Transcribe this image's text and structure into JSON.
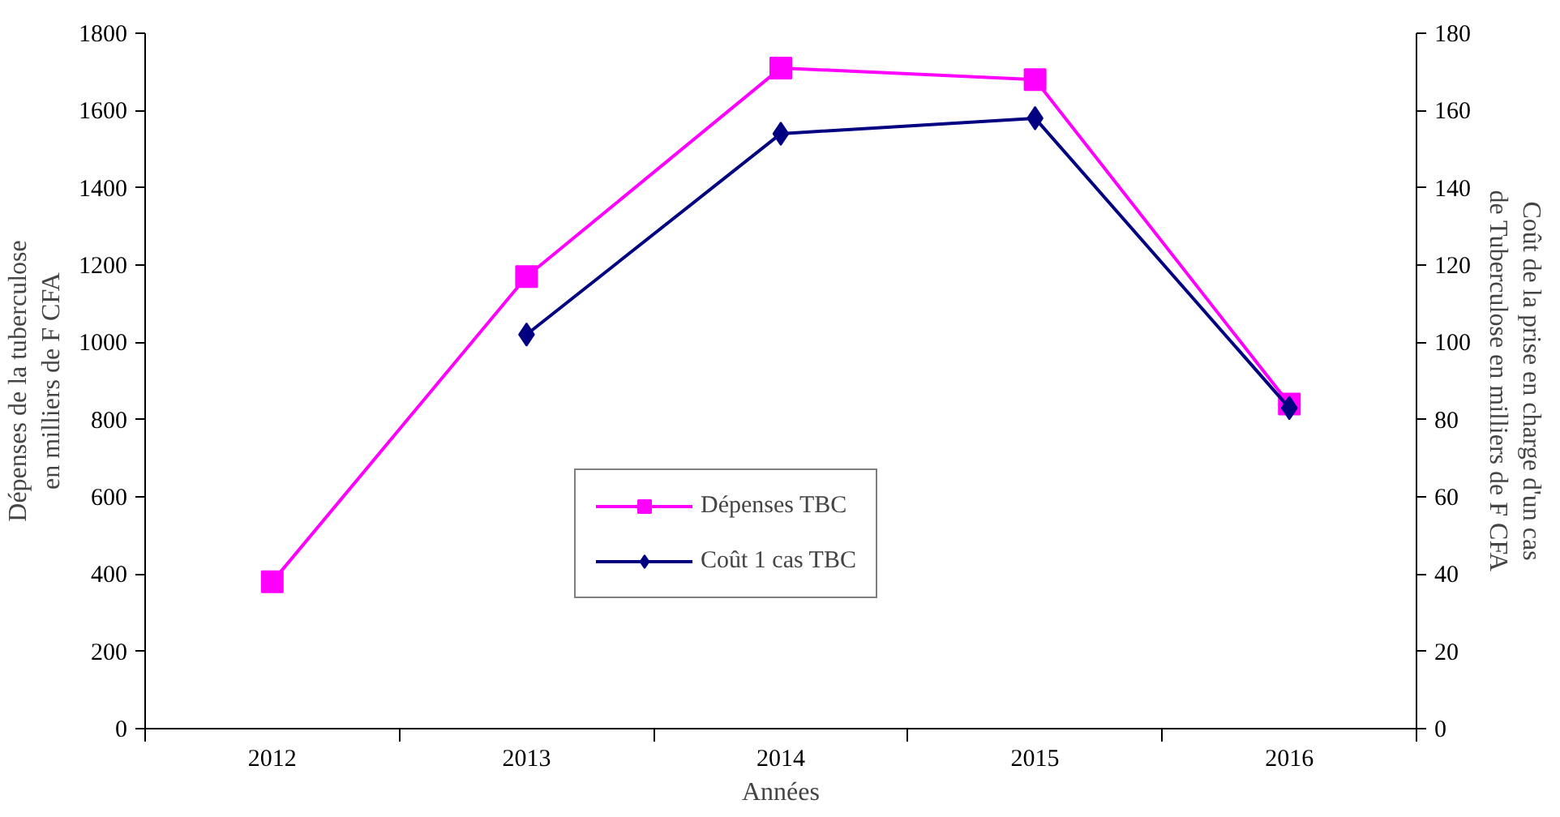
{
  "chart_data": {
    "type": "line",
    "categories": [
      "2012",
      "2013",
      "2014",
      "2015",
      "2016"
    ],
    "xlabel": "Années",
    "ylabel": "Dépenses de la tuberculose en milliers de F CFA",
    "y2label": "Coût de la prise en charge d'un cas de Tuberculose en milliers de F CFA",
    "ylim": [
      0,
      1800
    ],
    "yticks": [
      0,
      200,
      400,
      600,
      800,
      1000,
      1200,
      1400,
      1600,
      1800
    ],
    "y2lim": [
      0,
      180
    ],
    "y2ticks": [
      0,
      20,
      40,
      60,
      80,
      100,
      120,
      140,
      160,
      180
    ],
    "grid": false,
    "legend": "center",
    "series": [
      {
        "name": "Dépenses TBC",
        "color": "#ff00ff",
        "marker": "square",
        "values": [
          380,
          1170,
          1710,
          1680,
          840
        ]
      },
      {
        "name": "Coût 1 cas TBC",
        "color": "#000080",
        "marker": "diamond",
        "axis": "y2",
        "values": [
          null,
          102,
          154,
          158,
          83
        ]
      }
    ]
  }
}
